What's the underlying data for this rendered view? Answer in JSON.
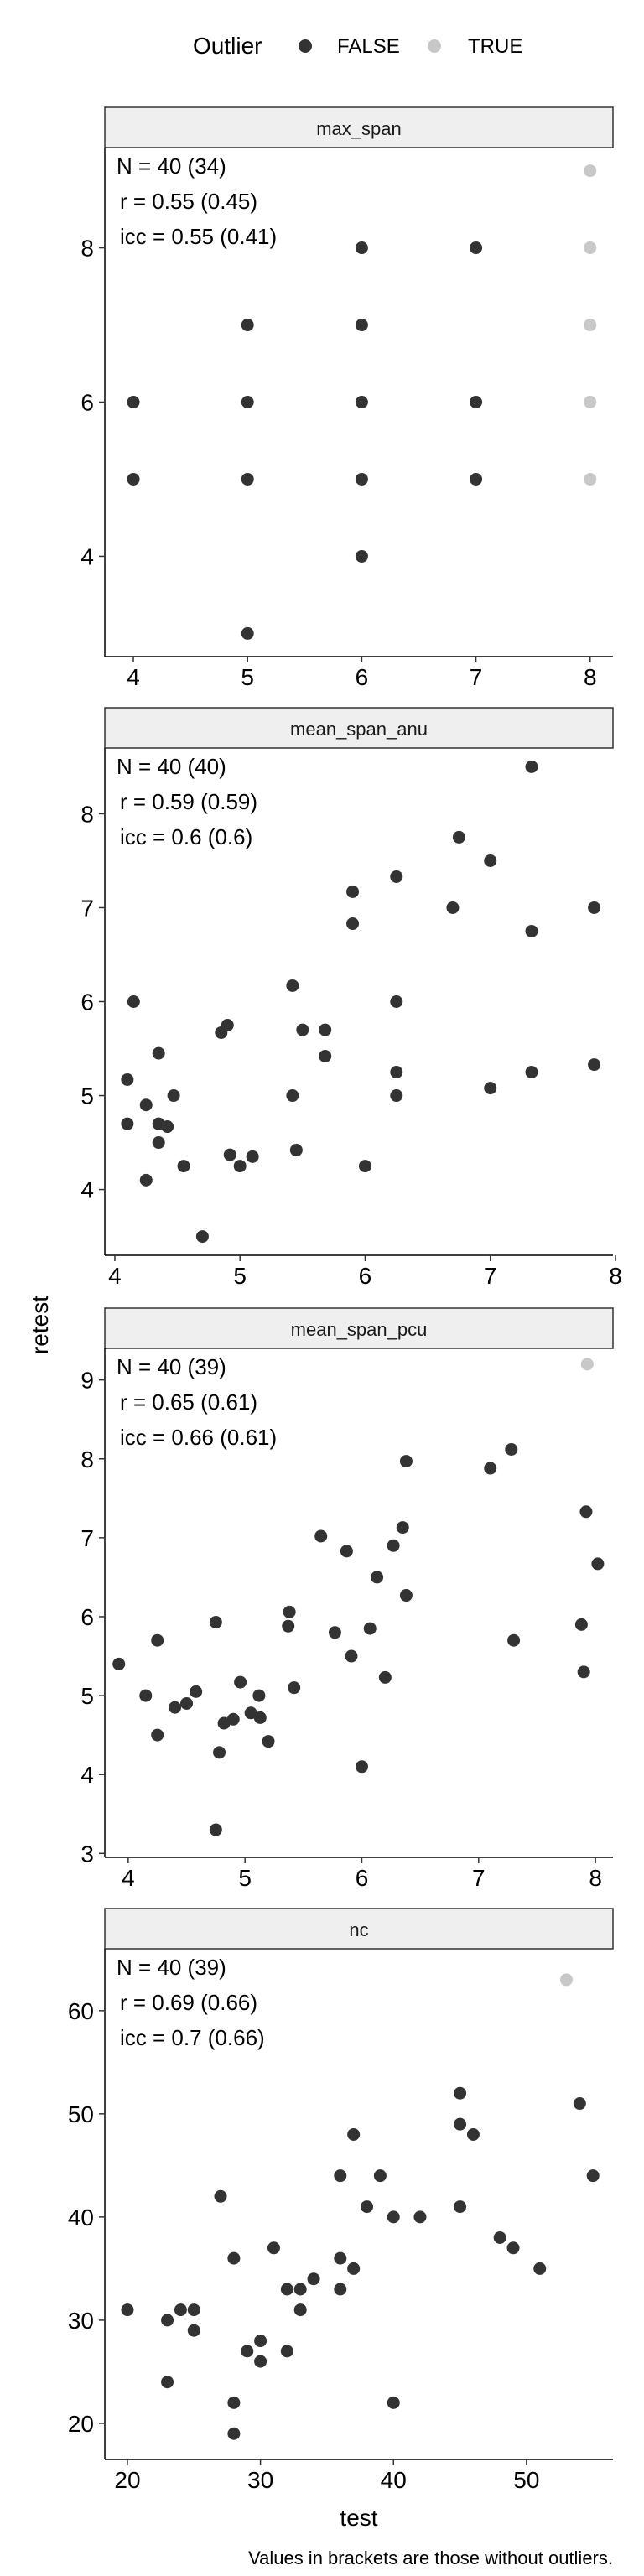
{
  "legend": {
    "title": "Outlier",
    "items": [
      {
        "label": "FALSE",
        "color": "#333333"
      },
      {
        "label": "TRUE",
        "color": "#c8c8c8"
      }
    ]
  },
  "axis_labels": {
    "x": "test",
    "y": "retest"
  },
  "caption": "Values in brackets are those without outliers.",
  "chart_data": [
    {
      "type": "scatter",
      "title": "max_span",
      "stats": [
        "N = 40 (34)",
        "r = 0.55 (0.45)",
        "icc = 0.55 (0.41)"
      ],
      "xlim": [
        3.75,
        8.2
      ],
      "ylim": [
        2.7,
        9.3
      ],
      "xticks": [
        4,
        5,
        6,
        7,
        8
      ],
      "yticks": [
        4,
        6,
        8
      ],
      "points": [
        {
          "x": 4,
          "y": 6
        },
        {
          "x": 4,
          "y": 5
        },
        {
          "x": 5,
          "y": 7
        },
        {
          "x": 5,
          "y": 6
        },
        {
          "x": 5,
          "y": 5
        },
        {
          "x": 5,
          "y": 3
        },
        {
          "x": 6,
          "y": 8
        },
        {
          "x": 6,
          "y": 7
        },
        {
          "x": 6,
          "y": 6
        },
        {
          "x": 6,
          "y": 5
        },
        {
          "x": 6,
          "y": 4
        },
        {
          "x": 7,
          "y": 8
        },
        {
          "x": 7,
          "y": 6
        },
        {
          "x": 7,
          "y": 5
        },
        {
          "x": 8,
          "y": 9,
          "outlier": true
        },
        {
          "x": 8,
          "y": 8,
          "outlier": true
        },
        {
          "x": 8,
          "y": 7,
          "outlier": true
        },
        {
          "x": 8,
          "y": 6,
          "outlier": true
        },
        {
          "x": 8,
          "y": 5,
          "outlier": true
        }
      ]
    },
    {
      "type": "scatter",
      "title": "mean_span_anu",
      "stats": [
        "N = 40 (40)",
        "r = 0.59 (0.59)",
        "icc = 0.6 (0.6)"
      ],
      "xlim": [
        3.92,
        7.98
      ],
      "ylim": [
        3.3,
        8.7
      ],
      "xticks": [
        4,
        5,
        6,
        7,
        8
      ],
      "yticks": [
        4,
        5,
        6,
        7,
        8
      ],
      "points": [
        {
          "x": 4.1,
          "y": 5.17
        },
        {
          "x": 4.1,
          "y": 4.7
        },
        {
          "x": 4.15,
          "y": 6.0
        },
        {
          "x": 4.25,
          "y": 4.9
        },
        {
          "x": 4.25,
          "y": 4.1
        },
        {
          "x": 4.35,
          "y": 5.45
        },
        {
          "x": 4.35,
          "y": 4.7
        },
        {
          "x": 4.35,
          "y": 4.5
        },
        {
          "x": 4.42,
          "y": 4.67
        },
        {
          "x": 4.47,
          "y": 5.0
        },
        {
          "x": 4.55,
          "y": 4.25
        },
        {
          "x": 4.7,
          "y": 3.5
        },
        {
          "x": 4.85,
          "y": 5.67
        },
        {
          "x": 4.9,
          "y": 5.75
        },
        {
          "x": 4.92,
          "y": 4.37
        },
        {
          "x": 5.0,
          "y": 4.25
        },
        {
          "x": 5.1,
          "y": 4.35
        },
        {
          "x": 5.42,
          "y": 6.17
        },
        {
          "x": 5.42,
          "y": 5.0
        },
        {
          "x": 5.45,
          "y": 4.42
        },
        {
          "x": 5.5,
          "y": 5.7
        },
        {
          "x": 5.68,
          "y": 5.7
        },
        {
          "x": 5.68,
          "y": 5.42
        },
        {
          "x": 5.9,
          "y": 7.17
        },
        {
          "x": 5.9,
          "y": 6.83
        },
        {
          "x": 6.0,
          "y": 4.25
        },
        {
          "x": 6.25,
          "y": 7.33
        },
        {
          "x": 6.25,
          "y": 6.0
        },
        {
          "x": 6.25,
          "y": 5.25
        },
        {
          "x": 6.25,
          "y": 5.0
        },
        {
          "x": 6.7,
          "y": 7.0
        },
        {
          "x": 6.75,
          "y": 7.75
        },
        {
          "x": 7.0,
          "y": 7.5
        },
        {
          "x": 7.0,
          "y": 5.08
        },
        {
          "x": 7.33,
          "y": 8.5
        },
        {
          "x": 7.33,
          "y": 6.75
        },
        {
          "x": 7.33,
          "y": 5.25
        },
        {
          "x": 7.83,
          "y": 7.0
        },
        {
          "x": 7.83,
          "y": 5.33
        }
      ]
    },
    {
      "type": "scatter",
      "title": "mean_span_pcu",
      "stats": [
        "N = 40 (39)",
        "r = 0.65 (0.61)",
        "icc = 0.66 (0.61)"
      ],
      "xlim": [
        3.8,
        8.15
      ],
      "ylim": [
        2.95,
        9.4
      ],
      "xticks": [
        4,
        5,
        6,
        7,
        8
      ],
      "yticks": [
        3,
        4,
        5,
        6,
        7,
        8,
        9
      ],
      "points": [
        {
          "x": 3.92,
          "y": 5.4
        },
        {
          "x": 4.15,
          "y": 5.0
        },
        {
          "x": 4.25,
          "y": 5.7
        },
        {
          "x": 4.25,
          "y": 4.5
        },
        {
          "x": 4.4,
          "y": 4.85
        },
        {
          "x": 4.5,
          "y": 4.9
        },
        {
          "x": 4.58,
          "y": 5.05
        },
        {
          "x": 4.75,
          "y": 5.93
        },
        {
          "x": 4.75,
          "y": 3.3
        },
        {
          "x": 4.78,
          "y": 4.28
        },
        {
          "x": 4.82,
          "y": 4.65
        },
        {
          "x": 4.9,
          "y": 4.7
        },
        {
          "x": 4.96,
          "y": 5.17
        },
        {
          "x": 5.05,
          "y": 4.78
        },
        {
          "x": 5.12,
          "y": 5.0
        },
        {
          "x": 5.13,
          "y": 4.72
        },
        {
          "x": 5.2,
          "y": 4.42
        },
        {
          "x": 5.37,
          "y": 5.88
        },
        {
          "x": 5.38,
          "y": 6.06
        },
        {
          "x": 5.42,
          "y": 5.1
        },
        {
          "x": 5.65,
          "y": 7.02
        },
        {
          "x": 5.77,
          "y": 5.8
        },
        {
          "x": 5.87,
          "y": 6.83
        },
        {
          "x": 5.91,
          "y": 5.5
        },
        {
          "x": 6.0,
          "y": 4.1
        },
        {
          "x": 6.07,
          "y": 5.85
        },
        {
          "x": 6.13,
          "y": 6.5
        },
        {
          "x": 6.2,
          "y": 5.23
        },
        {
          "x": 6.27,
          "y": 6.9
        },
        {
          "x": 6.35,
          "y": 7.13
        },
        {
          "x": 6.38,
          "y": 7.97
        },
        {
          "x": 6.38,
          "y": 6.27
        },
        {
          "x": 7.1,
          "y": 7.88
        },
        {
          "x": 7.28,
          "y": 8.12
        },
        {
          "x": 7.3,
          "y": 5.7
        },
        {
          "x": 7.88,
          "y": 5.9
        },
        {
          "x": 7.9,
          "y": 5.3
        },
        {
          "x": 7.92,
          "y": 7.33
        },
        {
          "x": 8.02,
          "y": 6.67
        },
        {
          "x": 7.93,
          "y": 9.2,
          "outlier": true
        }
      ]
    },
    {
      "type": "scatter",
      "title": "nc",
      "stats": [
        "N = 40 (39)",
        "r = 0.69 (0.66)",
        "icc = 0.7 (0.66)"
      ],
      "xlim": [
        18.3,
        56.5
      ],
      "ylim": [
        16.5,
        66
      ],
      "xticks": [
        20,
        30,
        40,
        50
      ],
      "yticks": [
        20,
        30,
        40,
        50,
        60
      ],
      "points": [
        {
          "x": 20,
          "y": 31
        },
        {
          "x": 23,
          "y": 30
        },
        {
          "x": 23,
          "y": 24
        },
        {
          "x": 24,
          "y": 31
        },
        {
          "x": 25,
          "y": 31
        },
        {
          "x": 25,
          "y": 29
        },
        {
          "x": 27,
          "y": 42
        },
        {
          "x": 28,
          "y": 36
        },
        {
          "x": 28,
          "y": 22
        },
        {
          "x": 28,
          "y": 19
        },
        {
          "x": 29,
          "y": 27
        },
        {
          "x": 30,
          "y": 28
        },
        {
          "x": 30,
          "y": 26
        },
        {
          "x": 31,
          "y": 37
        },
        {
          "x": 32,
          "y": 33
        },
        {
          "x": 32,
          "y": 27
        },
        {
          "x": 33,
          "y": 33
        },
        {
          "x": 33,
          "y": 31
        },
        {
          "x": 34,
          "y": 34
        },
        {
          "x": 36,
          "y": 44
        },
        {
          "x": 36,
          "y": 36
        },
        {
          "x": 36,
          "y": 33
        },
        {
          "x": 37,
          "y": 48
        },
        {
          "x": 37,
          "y": 35
        },
        {
          "x": 38,
          "y": 41
        },
        {
          "x": 39,
          "y": 44
        },
        {
          "x": 40,
          "y": 40
        },
        {
          "x": 40,
          "y": 22
        },
        {
          "x": 42,
          "y": 40
        },
        {
          "x": 45,
          "y": 52
        },
        {
          "x": 45,
          "y": 49
        },
        {
          "x": 45,
          "y": 41
        },
        {
          "x": 46,
          "y": 48
        },
        {
          "x": 48,
          "y": 38
        },
        {
          "x": 49,
          "y": 37
        },
        {
          "x": 51,
          "y": 35
        },
        {
          "x": 54,
          "y": 51
        },
        {
          "x": 55,
          "y": 44
        },
        {
          "x": 53,
          "y": 63,
          "outlier": true
        }
      ]
    }
  ]
}
